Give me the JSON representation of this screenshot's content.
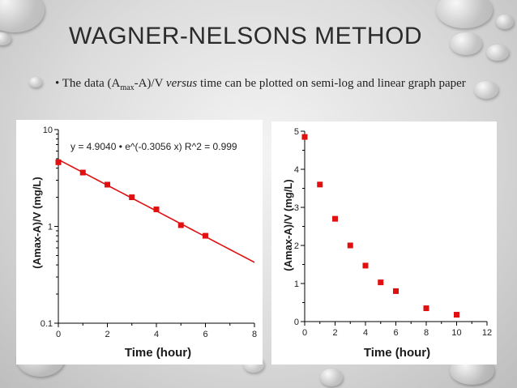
{
  "slide": {
    "title": "WAGNER-NELSONS METHOD",
    "bullet_marker": "•",
    "text_prefix": "The data (A",
    "text_sub": "max",
    "text_mid": "-A)/V ",
    "text_italic": "versus",
    "text_suffix": " time can be plotted on semi-log and linear graph paper"
  },
  "colors": {
    "marker": "#e01010",
    "fit_line": "#e01010",
    "axis": "#000000",
    "label": "#1a1a1a"
  },
  "chart_data": [
    {
      "type": "scatter",
      "scale": "log",
      "title": "",
      "annotation": "y = 4.9040 • e^(-0.3056 x) R^2 = 0.999",
      "xlabel": "Time (hour)",
      "ylabel": "(Amax-A)/V (mg/L)",
      "xlim": [
        0,
        8
      ],
      "ylim": [
        0.1,
        10
      ],
      "x_ticks": [
        "0",
        "2",
        "4",
        "6",
        "8"
      ],
      "y_ticks": [
        "0.1",
        "1",
        "10"
      ],
      "x": [
        0,
        1,
        2,
        3,
        4,
        5,
        6
      ],
      "y": [
        4.6,
        3.6,
        2.7,
        2.0,
        1.5,
        1.03,
        0.8
      ],
      "fit": {
        "a": 4.904,
        "k": 0.3056
      },
      "grid": false
    },
    {
      "type": "scatter",
      "scale": "linear",
      "title": "",
      "xlabel": "Time (hour)",
      "ylabel": "(Amax-A)/V (mg/L)",
      "xlim": [
        0,
        12
      ],
      "ylim": [
        0,
        5
      ],
      "x_ticks": [
        "0",
        "2",
        "4",
        "6",
        "8",
        "10",
        "12"
      ],
      "y_ticks": [
        "0",
        "1",
        "2",
        "3",
        "4",
        "5"
      ],
      "x": [
        0,
        1,
        2,
        3,
        4,
        5,
        6,
        8,
        10
      ],
      "y": [
        4.85,
        3.6,
        2.7,
        2.0,
        1.47,
        1.03,
        0.8,
        0.35,
        0.18
      ],
      "grid": false
    }
  ]
}
